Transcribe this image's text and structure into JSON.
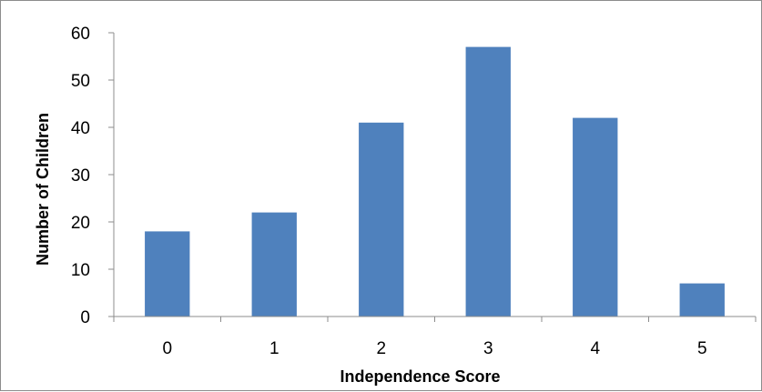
{
  "chart_data": {
    "type": "bar",
    "categories": [
      "0",
      "1",
      "2",
      "3",
      "4",
      "5"
    ],
    "values": [
      18,
      22,
      41,
      57,
      42,
      7
    ],
    "title": "",
    "xlabel": "Independence Score",
    "ylabel": "Number of Children",
    "ylim": [
      0,
      60
    ],
    "yticks": [
      "0",
      "10",
      "20",
      "30",
      "40",
      "50",
      "60"
    ],
    "grid": false,
    "legend": "none",
    "bar_color": "#4f81bd"
  }
}
